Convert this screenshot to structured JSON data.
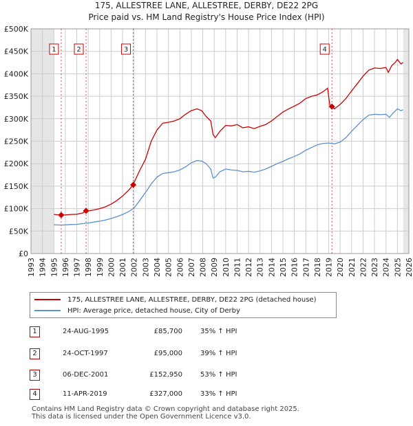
{
  "title": "175, ALLESTREE LANE, ALLESTREE, DERBY, DE22 2PG",
  "subtitle": "Price paid vs. HM Land Registry's House Price Index (HPI)",
  "colors": {
    "property": "#cc0000",
    "hpi": "#5b8fd0",
    "grid": "#cccccc",
    "shade": "#e6e6e6",
    "marker_border": "#cc0000"
  },
  "chart_data": {
    "type": "line",
    "title": "175, ALLESTREE LANE, ALLESTREE, DERBY, DE22 2PG",
    "subtitle": "Price paid vs. HM Land Registry's House Price Index (HPI)",
    "xlim": [
      1993,
      2026
    ],
    "ylim": [
      0,
      500000
    ],
    "y_ticks": [
      0,
      50000,
      100000,
      150000,
      200000,
      250000,
      300000,
      350000,
      400000,
      450000,
      500000
    ],
    "y_tick_labels": [
      "£0",
      "£50K",
      "£100K",
      "£150K",
      "£200K",
      "£250K",
      "£300K",
      "£350K",
      "£400K",
      "£450K",
      "£500K"
    ],
    "x_ticks": [
      1993,
      1994,
      1995,
      1996,
      1997,
      1998,
      1999,
      2000,
      2001,
      2002,
      2003,
      2004,
      2005,
      2006,
      2007,
      2008,
      2009,
      2010,
      2011,
      2012,
      2013,
      2014,
      2015,
      2016,
      2017,
      2018,
      2019,
      2020,
      2021,
      2022,
      2023,
      2024,
      2025,
      2026
    ],
    "x_tick_labels": [
      "1993",
      "1994",
      "1995",
      "1996",
      "1997",
      "1998",
      "1999",
      "2000",
      "2001",
      "2002",
      "2003",
      "2004",
      "2005",
      "2006",
      "2007",
      "2008",
      "2009",
      "2010",
      "2011",
      "2012",
      "2013",
      "2014",
      "2015",
      "2016",
      "2017",
      "2018",
      "2019",
      "2020",
      "2021",
      "2022",
      "2023",
      "2024",
      "2025",
      "2026"
    ],
    "grid": true,
    "shaded_ranges": [
      [
        1993,
        1995.0
      ],
      [
        2025.5,
        2026
      ]
    ],
    "series": [
      {
        "name": "175, ALLESTREE LANE, ALLESTREE, DERBY, DE22 2PG (detached house)",
        "color": "#cc0000",
        "x": [
          1995.0,
          1995.64,
          1996.0,
          1996.5,
          1997.0,
          1997.5,
          1997.81,
          1998.0,
          1998.5,
          1999.0,
          1999.5,
          2000.0,
          2000.5,
          2001.0,
          2001.5,
          2001.93,
          2002.0,
          2002.5,
          2003.0,
          2003.5,
          2004.0,
          2004.5,
          2005.0,
          2005.5,
          2006.0,
          2006.5,
          2007.0,
          2007.5,
          2007.9,
          2008.3,
          2008.7,
          2008.9,
          2009.1,
          2009.5,
          2010.0,
          2010.5,
          2011.0,
          2011.5,
          2012.0,
          2012.5,
          2013.0,
          2013.5,
          2014.0,
          2014.5,
          2015.0,
          2015.5,
          2016.0,
          2016.5,
          2017.0,
          2017.5,
          2018.0,
          2018.5,
          2018.9,
          2019.1,
          2019.28,
          2019.5,
          2020.0,
          2020.5,
          2021.0,
          2021.5,
          2022.0,
          2022.5,
          2023.0,
          2023.5,
          2024.0,
          2024.2,
          2024.5,
          2024.8,
          2025.0,
          2025.3,
          2025.5
        ],
        "values": [
          87000,
          85700,
          86000,
          87000,
          87500,
          90000,
          95000,
          95000,
          97000,
          100000,
          104000,
          110000,
          118000,
          128000,
          140000,
          152950,
          158000,
          185000,
          210000,
          250000,
          275000,
          290000,
          292000,
          295000,
          300000,
          310000,
          318000,
          322000,
          318000,
          305000,
          295000,
          265000,
          258000,
          272000,
          285000,
          284000,
          287000,
          280000,
          282000,
          278000,
          283000,
          287000,
          295000,
          305000,
          315000,
          322000,
          328000,
          335000,
          345000,
          350000,
          353000,
          360000,
          368000,
          330000,
          327000,
          322000,
          332000,
          345000,
          362000,
          378000,
          395000,
          408000,
          413000,
          412000,
          414000,
          403000,
          418000,
          425000,
          432000,
          422000,
          425000
        ]
      },
      {
        "name": "HPI: Average price, detached house, City of Derby",
        "color": "#5b8fd0",
        "x": [
          1995.0,
          1995.5,
          1996.0,
          1996.5,
          1997.0,
          1997.5,
          1998.0,
          1998.5,
          1999.0,
          1999.5,
          2000.0,
          2000.5,
          2001.0,
          2001.5,
          2002.0,
          2002.5,
          2003.0,
          2003.5,
          2004.0,
          2004.5,
          2005.0,
          2005.5,
          2006.0,
          2006.5,
          2007.0,
          2007.5,
          2007.9,
          2008.3,
          2008.7,
          2008.9,
          2009.1,
          2009.5,
          2010.0,
          2010.5,
          2011.0,
          2011.5,
          2012.0,
          2012.5,
          2013.0,
          2013.5,
          2014.0,
          2014.5,
          2015.0,
          2015.5,
          2016.0,
          2016.5,
          2017.0,
          2017.5,
          2018.0,
          2018.5,
          2019.0,
          2019.5,
          2020.0,
          2020.5,
          2021.0,
          2021.5,
          2022.0,
          2022.5,
          2023.0,
          2023.5,
          2024.0,
          2024.3,
          2024.6,
          2025.0,
          2025.3,
          2025.5
        ],
        "values": [
          64000,
          63500,
          63800,
          64500,
          65000,
          66500,
          68000,
          70000,
          72000,
          74500,
          78000,
          82000,
          87000,
          93000,
          101000,
          118000,
          136000,
          155000,
          170000,
          178000,
          180000,
          182000,
          186000,
          193000,
          202000,
          207000,
          206000,
          200000,
          188000,
          168000,
          170000,
          182000,
          188000,
          186000,
          185000,
          182000,
          183000,
          181000,
          184000,
          188000,
          194000,
          200000,
          205000,
          211000,
          216000,
          222000,
          230000,
          236000,
          242000,
          245000,
          246000,
          244000,
          248000,
          258000,
          272000,
          285000,
          298000,
          308000,
          310000,
          309000,
          310000,
          303000,
          312000,
          322000,
          318000,
          320000
        ]
      }
    ],
    "sales": [
      {
        "label": "1",
        "x": 1995.64,
        "value": 85700
      },
      {
        "label": "2",
        "x": 1997.81,
        "value": 95000
      },
      {
        "label": "3",
        "x": 2001.93,
        "value": 152950
      },
      {
        "label": "4",
        "x": 2019.28,
        "value": 327000
      }
    ]
  },
  "legend": {
    "property": "175, ALLESTREE LANE, ALLESTREE, DERBY, DE22 2PG (detached house)",
    "hpi": "HPI: Average price, detached house, City of Derby"
  },
  "transactions": [
    {
      "num": "1",
      "date": "24-AUG-1995",
      "price": "£85,700",
      "hpi": "35% ↑ HPI"
    },
    {
      "num": "2",
      "date": "24-OCT-1997",
      "price": "£95,000",
      "hpi": "39% ↑ HPI"
    },
    {
      "num": "3",
      "date": "06-DEC-2001",
      "price": "£152,950",
      "hpi": "53% ↑ HPI"
    },
    {
      "num": "4",
      "date": "11-APR-2019",
      "price": "£327,000",
      "hpi": "33% ↑ HPI"
    }
  ],
  "footer": {
    "line1": "Contains HM Land Registry data © Crown copyright and database right 2025.",
    "line2": "This data is licensed under the Open Government Licence v3.0."
  }
}
